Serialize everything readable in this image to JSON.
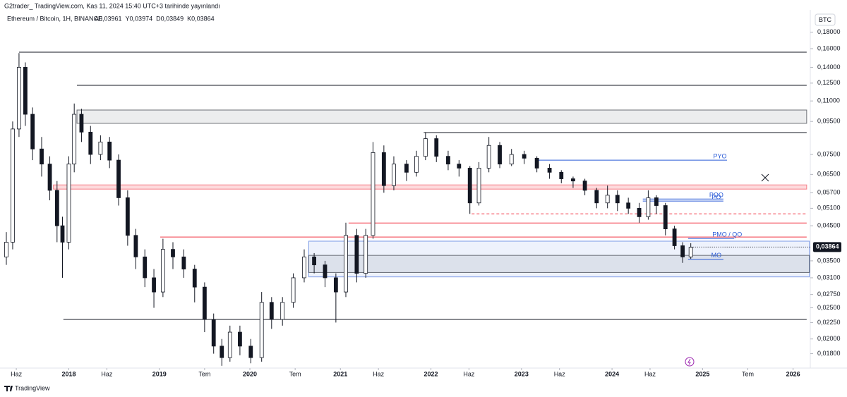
{
  "chart_data": {
    "type": "candlestick",
    "published": "G2trader_ TradingView.com, Kas 11, 2024 15:40 UTC+3 tarihinde yayınlandı",
    "title": "Ethereum / Bitcoin, 1H, BINANCE",
    "legend_values": [
      {
        "value": 0.03961,
        "label": "A0,03961"
      },
      {
        "value": 0.03974,
        "label": "Y0,03974"
      },
      {
        "value": 0.03849,
        "label": "D0,03849"
      },
      {
        "value": 0.03864,
        "label": "K0,03864"
      }
    ],
    "currency": "BTC",
    "brand": "TradingView",
    "log_scale": true,
    "up_color": "#ffffff",
    "down_color": "#131722",
    "x": [
      2017.31,
      2017.38,
      2017.45,
      2017.52,
      2017.6,
      2017.7,
      2017.79,
      2017.87,
      2017.93,
      2018.0,
      2018.06,
      2018.14,
      2018.24,
      2018.35,
      2018.45,
      2018.55,
      2018.65,
      2018.74,
      2018.84,
      2018.94,
      2019.04,
      2019.15,
      2019.27,
      2019.39,
      2019.5,
      2019.6,
      2019.69,
      2019.78,
      2019.89,
      2020.01,
      2020.13,
      2020.24,
      2020.36,
      2020.48,
      2020.6,
      2020.71,
      2020.83,
      2020.95,
      2021.06,
      2021.18,
      2021.28,
      2021.36,
      2021.48,
      2021.59,
      2021.73,
      2021.84,
      2021.94,
      2022.06,
      2022.19,
      2022.31,
      2022.43,
      2022.53,
      2022.64,
      2022.76,
      2022.89,
      2023.03,
      2023.17,
      2023.31,
      2023.44,
      2023.57,
      2023.7,
      2023.83,
      2023.95,
      2024.06,
      2024.18,
      2024.3,
      2024.4,
      2024.49,
      2024.59,
      2024.69,
      2024.78,
      2024.87
    ],
    "open": [
      0.036,
      0.04,
      0.09,
      0.14,
      0.1,
      0.078,
      0.07,
      0.058,
      0.045,
      0.04,
      0.07,
      0.1,
      0.088,
      0.075,
      0.082,
      0.072,
      0.055,
      0.042,
      0.036,
      0.031,
      0.028,
      0.038,
      0.036,
      0.033,
      0.029,
      0.023,
      0.019,
      0.0175,
      0.021,
      0.019,
      0.0175,
      0.026,
      0.023,
      0.026,
      0.031,
      0.036,
      0.034,
      0.031,
      0.028,
      0.042,
      0.032,
      0.042,
      0.076,
      0.06,
      0.07,
      0.066,
      0.074,
      0.084,
      0.074,
      0.07,
      0.068,
      0.053,
      0.068,
      0.08,
      0.07,
      0.075,
      0.073,
      0.068,
      0.066,
      0.063,
      0.062,
      0.058,
      0.053,
      0.056,
      0.053,
      0.051,
      0.048,
      0.055,
      0.052,
      0.044,
      0.039,
      0.036
    ],
    "high": [
      0.043,
      0.095,
      0.155,
      0.145,
      0.105,
      0.085,
      0.074,
      0.062,
      0.048,
      0.074,
      0.108,
      0.104,
      0.092,
      0.086,
      0.085,
      0.075,
      0.058,
      0.044,
      0.038,
      0.033,
      0.041,
      0.04,
      0.038,
      0.034,
      0.03,
      0.024,
      0.02,
      0.022,
      0.022,
      0.02,
      0.028,
      0.027,
      0.027,
      0.032,
      0.038,
      0.037,
      0.035,
      0.032,
      0.046,
      0.044,
      0.044,
      0.082,
      0.08,
      0.074,
      0.072,
      0.077,
      0.088,
      0.086,
      0.077,
      0.072,
      0.069,
      0.071,
      0.085,
      0.082,
      0.078,
      0.077,
      0.074,
      0.07,
      0.067,
      0.064,
      0.063,
      0.059,
      0.06,
      0.058,
      0.055,
      0.053,
      0.058,
      0.056,
      0.053,
      0.045,
      0.04,
      0.0397
    ],
    "low": [
      0.034,
      0.038,
      0.085,
      0.092,
      0.072,
      0.064,
      0.054,
      0.04,
      0.031,
      0.038,
      0.066,
      0.082,
      0.07,
      0.072,
      0.068,
      0.052,
      0.039,
      0.033,
      0.029,
      0.025,
      0.027,
      0.033,
      0.031,
      0.026,
      0.021,
      0.018,
      0.0165,
      0.017,
      0.0178,
      0.0168,
      0.017,
      0.0215,
      0.022,
      0.025,
      0.03,
      0.032,
      0.029,
      0.0225,
      0.027,
      0.03,
      0.031,
      0.041,
      0.057,
      0.058,
      0.062,
      0.064,
      0.072,
      0.071,
      0.067,
      0.064,
      0.049,
      0.052,
      0.066,
      0.068,
      0.069,
      0.07,
      0.066,
      0.063,
      0.061,
      0.059,
      0.056,
      0.051,
      0.051,
      0.05,
      0.049,
      0.046,
      0.047,
      0.049,
      0.042,
      0.038,
      0.0345,
      0.0355
    ],
    "close": [
      0.04,
      0.09,
      0.14,
      0.1,
      0.078,
      0.07,
      0.058,
      0.045,
      0.04,
      0.07,
      0.1,
      0.088,
      0.075,
      0.082,
      0.072,
      0.055,
      0.042,
      0.036,
      0.031,
      0.028,
      0.038,
      0.036,
      0.033,
      0.029,
      0.023,
      0.019,
      0.0175,
      0.021,
      0.019,
      0.0175,
      0.026,
      0.023,
      0.026,
      0.031,
      0.036,
      0.034,
      0.031,
      0.028,
      0.042,
      0.032,
      0.042,
      0.076,
      0.06,
      0.07,
      0.066,
      0.074,
      0.084,
      0.074,
      0.07,
      0.068,
      0.053,
      0.068,
      0.08,
      0.07,
      0.075,
      0.073,
      0.068,
      0.066,
      0.063,
      0.062,
      0.058,
      0.053,
      0.056,
      0.053,
      0.051,
      0.048,
      0.055,
      0.052,
      0.044,
      0.039,
      0.036,
      0.0386
    ],
    "last_price": {
      "value": 0.03864,
      "label": "0,03864"
    },
    "levels": [
      {
        "kind": "line",
        "y0": 0.156,
        "x0": 2017.45,
        "x1": 2026.15,
        "color": "#131722"
      },
      {
        "kind": "line",
        "y0": 0.123,
        "x0": 2018.09,
        "x1": 2026.15,
        "color": "#131722"
      },
      {
        "kind": "box",
        "y0": 0.1031,
        "y1": 0.0937,
        "x0": 2018.09,
        "x1": 2026.15,
        "color": "#131722"
      },
      {
        "kind": "line",
        "y0": 0.0877,
        "x0": 2021.92,
        "x1": 2026.15,
        "color": "#131722"
      },
      {
        "kind": "line",
        "y0": 0.072,
        "x0": 2023.17,
        "x1": 2025.27,
        "color": "#2a5bd7",
        "label": "PYO"
      },
      {
        "kind": "box",
        "y0": 0.0603,
        "y1": 0.0585,
        "x0": 2017.83,
        "x1": 2026.15,
        "color": "#f23645"
      },
      {
        "kind": "line",
        "y0": 0.0545,
        "x0": 2024.34,
        "x1": 2025.23,
        "color": "#2a5bd7",
        "label": "POO"
      },
      {
        "kind": "line",
        "y0": 0.0537,
        "x0": 2024.34,
        "x1": 2025.23,
        "color": "#2a5bd7",
        "label": "PO"
      },
      {
        "kind": "line",
        "y0": 0.049,
        "x0": 2022.45,
        "x1": 2026.15,
        "color": "#f23645",
        "dashed": true
      },
      {
        "kind": "line",
        "y0": 0.0459,
        "x0": 2021.09,
        "x1": 2026.15,
        "color": "#f23645"
      },
      {
        "kind": "line",
        "y0": 0.0415,
        "x0": 2019.01,
        "x1": 2026.15,
        "color": "#f23645"
      },
      {
        "kind": "line",
        "y0": 0.0411,
        "x0": 2024.84,
        "x1": 2025.35,
        "color": "#2a5bd7",
        "label": "PMO / QO"
      },
      {
        "kind": "box",
        "y0": 0.0403,
        "y1": 0.0312,
        "x0": 2020.65,
        "x1": 2026.18,
        "color": "#2a5bd7"
      },
      {
        "kind": "box",
        "y0": 0.0364,
        "y1": 0.0322,
        "x0": 2020.65,
        "x1": 2026.18,
        "color": "#131722"
      },
      {
        "kind": "line",
        "y0": 0.0354,
        "x0": 2024.84,
        "x1": 2025.23,
        "color": "#2a5bd7",
        "label": "MO"
      },
      {
        "kind": "line",
        "y0": 0.023,
        "x0": 2017.94,
        "x1": 2026.15,
        "color": "#131722"
      }
    ],
    "xlim": [
      2017.24,
      2026.19
    ],
    "xticks": [
      {
        "value": 2017.42,
        "label": "Haz"
      },
      2018,
      {
        "value": 2018.42,
        "label": "Haz"
      },
      2019,
      {
        "value": 2019.5,
        "label": "Tem"
      },
      2020,
      {
        "value": 2020.5,
        "label": "Tem"
      },
      2021,
      {
        "value": 2021.42,
        "label": "Haz"
      },
      2022,
      {
        "value": 2022.42,
        "label": "Haz"
      },
      2023,
      {
        "value": 2023.42,
        "label": "Haz"
      },
      2024,
      {
        "value": 2024.42,
        "label": "Haz"
      },
      2025,
      {
        "value": 2025.5,
        "label": "Tem"
      },
      2026
    ],
    "ylim": [
      0.0164,
      0.207
    ],
    "yticks": [
      {
        "value": 0.18,
        "label": "0,18000"
      },
      {
        "value": 0.16,
        "label": "0,16000"
      },
      {
        "value": 0.14,
        "label": "0,14000"
      },
      {
        "value": 0.125,
        "label": "0,12500"
      },
      {
        "value": 0.11,
        "label": "0,11000"
      },
      {
        "value": 0.095,
        "label": "0,09500"
      },
      {
        "value": 0.075,
        "label": "0,07500"
      },
      {
        "value": 0.065,
        "label": "0,06500"
      },
      {
        "value": 0.057,
        "label": "0,05700"
      },
      {
        "value": 0.051,
        "label": "0,05100"
      },
      {
        "value": 0.045,
        "label": "0,04500"
      },
      {
        "value": 0.035,
        "label": "0,03500"
      },
      {
        "value": 0.031,
        "label": "0,03100"
      },
      {
        "value": 0.0275,
        "label": "0,02750"
      },
      {
        "value": 0.025,
        "label": "0,02500"
      },
      {
        "value": 0.0225,
        "label": "0,02250"
      },
      {
        "value": 0.02,
        "label": "0,02000"
      },
      {
        "value": 0.018,
        "label": "0,01800"
      }
    ]
  }
}
